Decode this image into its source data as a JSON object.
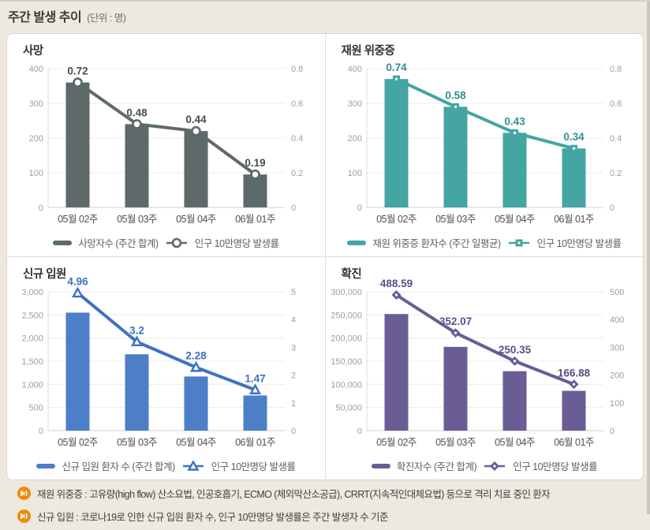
{
  "page": {
    "title": "주간 발생 추이",
    "unit_label": "(단위 : 명)"
  },
  "notes": [
    {
      "icon": "speaker-icon",
      "text": "재원 위중증 : 고유량(high flow) 산소요법, 인공호흡기, ECMO (체외막산소공급), CRRT(지속적인대체요법) 등으로 격리 치료 중인 환자"
    },
    {
      "icon": "speaker-icon",
      "text": "신규 입원 : 코로나19로 인한 신규 입원 환자 수, 인구 10만명당 발생률은 주간 발생자 수 기준",
      "clipped": true
    }
  ],
  "chart_data": [
    {
      "key": "deaths",
      "title": "사망",
      "type": "bar",
      "categories": [
        "05월 02주",
        "05월 03주",
        "05월 04주",
        "06월 01주"
      ],
      "series": [
        {
          "name": "사망자수 (주간 합계)",
          "type": "bar",
          "axis": "left",
          "values": [
            360,
            240,
            220,
            95
          ]
        },
        {
          "name": "인구 10만명당 발생률",
          "type": "line",
          "axis": "right",
          "marker": "circle",
          "values": [
            0.72,
            0.48,
            0.44,
            0.19
          ],
          "labels": [
            "0.72",
            "0.48",
            "0.44",
            "0.19"
          ]
        }
      ],
      "left_axis": {
        "max": 400,
        "ticks": [
          "0",
          "100",
          "200",
          "300",
          "400"
        ]
      },
      "right_axis": {
        "max": 0.8,
        "ticks": [
          "0",
          "0.2",
          "0.4",
          "0.6",
          "0.8"
        ]
      },
      "colors": {
        "bar": "#5e6a6a",
        "line": "#5e6a6a",
        "value_label": "#45504f"
      }
    },
    {
      "key": "severe",
      "title": "재원 위중증",
      "type": "bar",
      "categories": [
        "05월 02주",
        "05월 03주",
        "05월 04주",
        "06월 01주"
      ],
      "series": [
        {
          "name": "재원 위중증 환자수 (주간 일평균)",
          "type": "bar",
          "axis": "left",
          "values": [
            370,
            290,
            215,
            170
          ]
        },
        {
          "name": "인구 10만명당 발생률",
          "type": "line",
          "axis": "right",
          "marker": "square",
          "values": [
            0.74,
            0.58,
            0.43,
            0.34
          ],
          "labels": [
            "0.74",
            "0.58",
            "0.43",
            "0.34"
          ]
        }
      ],
      "left_axis": {
        "max": 400,
        "ticks": [
          "0",
          "100",
          "200",
          "300",
          "400"
        ]
      },
      "right_axis": {
        "max": 0.8,
        "ticks": [
          "0",
          "0.2",
          "0.4",
          "0.6",
          "0.8"
        ]
      },
      "colors": {
        "bar": "#44a5a2",
        "line": "#44a5a2",
        "value_label": "#2e918d"
      }
    },
    {
      "key": "new-admissions",
      "title": "신규 입원",
      "type": "bar",
      "categories": [
        "05월 02주",
        "05월 03주",
        "05월 04주",
        "06월 01주"
      ],
      "series": [
        {
          "name": "신규 입원 환자 수 (주간 합계)",
          "type": "bar",
          "axis": "left",
          "values": [
            2550,
            1650,
            1170,
            760
          ]
        },
        {
          "name": "인구 10만명당 발생률",
          "type": "line",
          "axis": "right",
          "marker": "triangle",
          "values": [
            4.96,
            3.2,
            2.28,
            1.47
          ],
          "labels": [
            "4.96",
            "3.2",
            "2.28",
            "1.47"
          ]
        }
      ],
      "left_axis": {
        "max": 3000,
        "ticks": [
          "0",
          "500",
          "1,000",
          "1,500",
          "2,000",
          "2,500",
          "3,000"
        ]
      },
      "right_axis": {
        "max": 5,
        "ticks": [
          "0",
          "1",
          "2",
          "3",
          "4",
          "5"
        ]
      },
      "colors": {
        "bar": "#4d7ec8",
        "line": "#3f72c0",
        "value_label": "#3e6fc2"
      }
    },
    {
      "key": "confirmed",
      "title": "확진",
      "type": "bar",
      "categories": [
        "05월 02주",
        "05월 03주",
        "05월 04주",
        "06월 01주"
      ],
      "series": [
        {
          "name": "확진자수 (주간 합계)",
          "type": "bar",
          "axis": "left",
          "values": [
            252000,
            181000,
            128500,
            86000
          ]
        },
        {
          "name": "인구 10만명당 발생률",
          "type": "line",
          "axis": "right",
          "marker": "diamond",
          "values": [
            488.59,
            352.07,
            250.35,
            166.88
          ],
          "labels": [
            "488.59",
            "352.07",
            "250.35",
            "166.88"
          ]
        }
      ],
      "left_axis": {
        "max": 300000,
        "ticks": [
          "0",
          "50,000",
          "100,000",
          "150,000",
          "200,000",
          "250,000",
          "300,000"
        ]
      },
      "right_axis": {
        "max": 500,
        "ticks": [
          "0",
          "100",
          "200",
          "300",
          "400",
          "500"
        ]
      },
      "colors": {
        "bar": "#6a5c95",
        "line": "#6a5c95",
        "value_label": "#5b4d88"
      }
    }
  ],
  "style": {
    "note_icon_color": "#ef8a0d",
    "gridline_color": "#ececec",
    "baseline_color": "#cfcfcf"
  }
}
